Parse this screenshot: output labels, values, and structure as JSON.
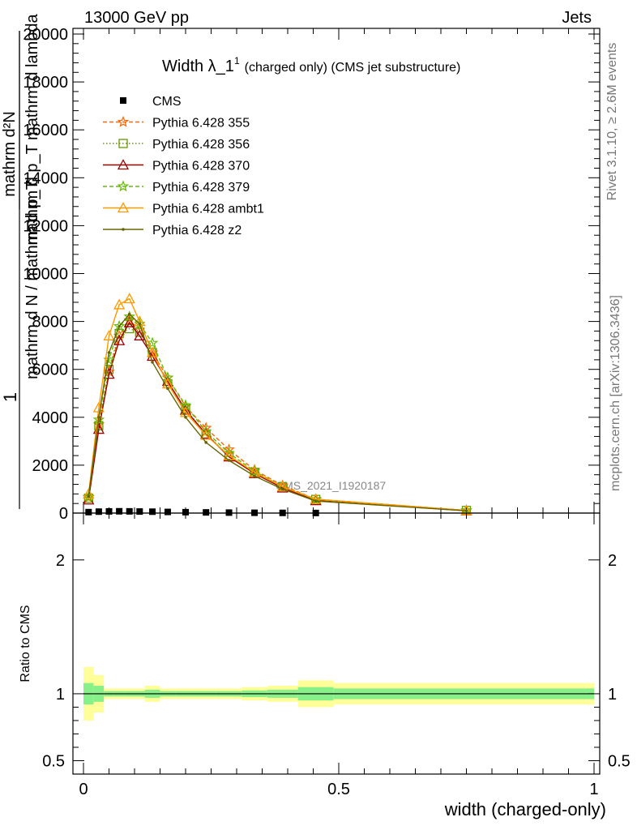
{
  "header": {
    "left": "13000 GeV pp",
    "right": "Jets"
  },
  "side_labels": {
    "rivet": "Rivet 3.1.10, ≥ 2.6M events",
    "mcplots": "mcplots.cern.ch [arXiv:1306.3436]"
  },
  "watermark": "CMS_2021_I1920187",
  "colors": {
    "cms": "#000000",
    "p355": "#ff6600",
    "p356": "#669900",
    "p370": "#990000",
    "p379": "#66bb00",
    "ambt1": "#ff9900",
    "z2": "#666600",
    "band_inner": "#88f088",
    "band_outer": "#ffff99"
  },
  "chart_data": [
    {
      "type": "line",
      "title": "Width λ_1¹ (charged only) (CMS jet substructure)",
      "title_main": "Width λ_1",
      "title_sup": "1",
      "title_rest": "(charged only) (CMS jet substructure)",
      "ylabel_num": "mathrm d²N",
      "ylabel_den": "mathrm d p_T mathrm d lambda",
      "ylabel_frac_num": "1",
      "ylabel_frac_den": "mathrm d N / mathrm d p_T",
      "xlim": [
        0,
        1
      ],
      "ylim": [
        0,
        20000
      ],
      "yticks": [
        0,
        2000,
        4000,
        6000,
        8000,
        10000,
        12000,
        14000,
        16000,
        18000,
        20000
      ],
      "legend_position": "top-left",
      "series": [
        {
          "name": "CMS",
          "key": "cms",
          "style": "square",
          "x": [
            0.01,
            0.03,
            0.05,
            0.07,
            0.09,
            0.11,
            0.135,
            0.165,
            0.2,
            0.24,
            0.285,
            0.335,
            0.39,
            0.455
          ],
          "y": [
            40,
            60,
            70,
            75,
            72,
            65,
            58,
            48,
            38,
            28,
            20,
            13,
            8,
            4
          ]
        },
        {
          "name": "Pythia 6.428 355",
          "key": "p355",
          "style": "star-dashed",
          "x": [
            0.01,
            0.03,
            0.05,
            0.07,
            0.09,
            0.11,
            0.135,
            0.165,
            0.2,
            0.24,
            0.285,
            0.335,
            0.39,
            0.455,
            0.75
          ],
          "y": [
            650,
            3700,
            5900,
            7400,
            8050,
            7650,
            6700,
            5650,
            4450,
            3550,
            2650,
            1800,
            1150,
            580,
            110
          ]
        },
        {
          "name": "Pythia 6.428 356",
          "key": "p356",
          "style": "square-dotted",
          "x": [
            0.01,
            0.03,
            0.05,
            0.07,
            0.09,
            0.11,
            0.135,
            0.165,
            0.2,
            0.24,
            0.285,
            0.335,
            0.39,
            0.455,
            0.75
          ],
          "y": [
            620,
            3650,
            6000,
            7500,
            7700,
            7550,
            6700,
            5400,
            4350,
            3300,
            2400,
            1700,
            1100,
            570,
            110
          ]
        },
        {
          "name": "Pythia 6.428 370",
          "key": "p370",
          "style": "triangle",
          "x": [
            0.01,
            0.03,
            0.05,
            0.07,
            0.09,
            0.11,
            0.135,
            0.165,
            0.2,
            0.24,
            0.285,
            0.335,
            0.39,
            0.455,
            0.75
          ],
          "y": [
            550,
            3500,
            5800,
            7200,
            7950,
            7400,
            6550,
            5500,
            4300,
            3300,
            2350,
            1650,
            1050,
            520,
            100
          ]
        },
        {
          "name": "Pythia 6.428 379",
          "key": "p379",
          "style": "star-dashed",
          "x": [
            0.01,
            0.03,
            0.05,
            0.07,
            0.09,
            0.11,
            0.135,
            0.165,
            0.2,
            0.24,
            0.285,
            0.335,
            0.39,
            0.455,
            0.75
          ],
          "y": [
            680,
            3900,
            6400,
            7800,
            8200,
            7900,
            7100,
            5650,
            4500,
            3400,
            2500,
            1750,
            1100,
            560,
            105
          ]
        },
        {
          "name": "Pythia 6.428 ambt1",
          "key": "ambt1",
          "style": "triangle",
          "x": [
            0.01,
            0.03,
            0.05,
            0.07,
            0.09,
            0.11,
            0.135,
            0.165,
            0.2,
            0.24,
            0.285,
            0.335,
            0.39,
            0.455,
            0.75
          ],
          "y": [
            800,
            4400,
            7400,
            8700,
            8950,
            8000,
            6700,
            5400,
            4200,
            3250,
            2400,
            1700,
            1100,
            580,
            110
          ]
        },
        {
          "name": "Pythia 6.428 z2",
          "key": "z2",
          "style": "dot",
          "x": [
            0.01,
            0.03,
            0.05,
            0.07,
            0.09,
            0.11,
            0.135,
            0.165,
            0.2,
            0.24,
            0.285,
            0.335,
            0.39,
            0.455,
            0.75
          ],
          "y": [
            700,
            4000,
            6700,
            7800,
            8300,
            7900,
            6300,
            5200,
            4000,
            2950,
            2200,
            1550,
            1000,
            500,
            95
          ]
        }
      ]
    },
    {
      "type": "area",
      "ylabel": "Ratio to CMS",
      "xlabel": "width (charged-only)",
      "xlim": [
        0,
        1
      ],
      "ylim": [
        0.4,
        2.35
      ],
      "yticks": [
        0.5,
        1,
        2
      ],
      "ytick_labels": [
        "0.5",
        "1",
        "2"
      ],
      "xticks": [
        0,
        0.5,
        1
      ],
      "xtick_labels": [
        "0",
        "0.5",
        "1"
      ],
      "reference": 1,
      "bins": [
        0,
        0.02,
        0.04,
        0.06,
        0.08,
        0.1,
        0.12,
        0.15,
        0.18,
        0.22,
        0.26,
        0.31,
        0.36,
        0.42,
        0.49,
        1.0
      ],
      "band_inner": [
        0.08,
        0.06,
        0.02,
        0.02,
        0.02,
        0.02,
        0.03,
        0.02,
        0.02,
        0.02,
        0.02,
        0.025,
        0.03,
        0.05,
        0.04
      ],
      "band_outer": [
        0.2,
        0.14,
        0.04,
        0.04,
        0.04,
        0.04,
        0.06,
        0.04,
        0.04,
        0.04,
        0.04,
        0.05,
        0.06,
        0.1,
        0.08
      ]
    }
  ]
}
